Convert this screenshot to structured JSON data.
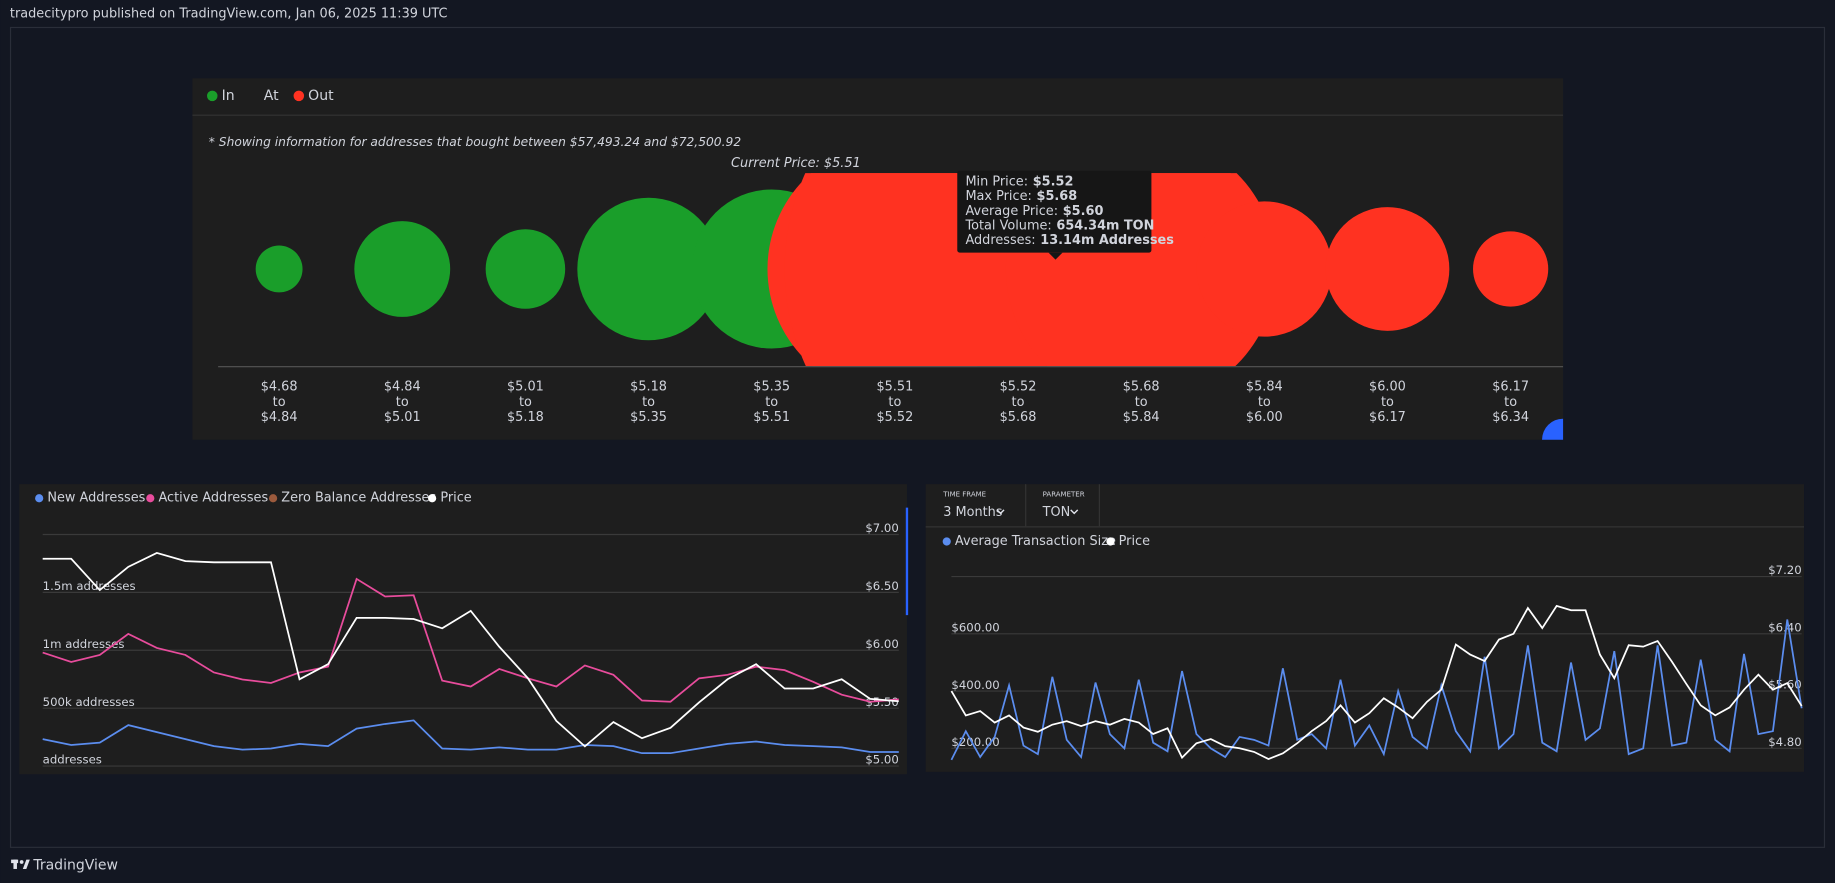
{
  "header": {
    "text": "tradecitypro published on TradingView.com, Jan 06, 2025 11:39 UTC"
  },
  "footer": {
    "brand": "TradingView"
  },
  "chart_data": [
    {
      "type": "bubble",
      "note": "* Showing information for addresses that bought between $57,493.24 and $72,500.92",
      "current_price_label": "Current Price: $5.51",
      "range_word": "to",
      "ranges": [
        [
          "$4.68",
          "$4.84"
        ],
        [
          "$4.84",
          "$5.01"
        ],
        [
          "$5.01",
          "$5.18"
        ],
        [
          "$5.18",
          "$5.35"
        ],
        [
          "$5.35",
          "$5.51"
        ],
        [
          "$5.51",
          "$5.52"
        ],
        [
          "$5.52",
          "$5.68"
        ],
        [
          "$5.68",
          "$5.84"
        ],
        [
          "$5.84",
          "$6.00"
        ],
        [
          "$6.00",
          "$6.17"
        ],
        [
          "$6.17",
          "$6.34"
        ]
      ],
      "series": [
        {
          "name": "In",
          "color": "#1a9e2a",
          "values": [
            6.6,
            27.6,
            19,
            61,
            76,
            null,
            null,
            null,
            null,
            null,
            null
          ]
        },
        {
          "name": "At",
          "values": [
            null,
            null,
            null,
            null,
            null,
            null,
            null,
            null,
            null,
            null,
            null
          ]
        },
        {
          "name": "Out",
          "color": "#ff3221",
          "values": [
            null,
            null,
            null,
            null,
            null,
            195,
            654.34,
            220,
            55,
            46,
            17
          ]
        }
      ],
      "tooltip": {
        "rows": [
          [
            "Min Price:",
            "$5.52"
          ],
          [
            "Max Price:",
            "$5.68"
          ],
          [
            "Average Price:",
            "$5.60"
          ],
          [
            "Total Volume:",
            "654.34m TON"
          ],
          [
            "Addresses:",
            "13.14m Addresses"
          ]
        ]
      }
    },
    {
      "type": "line",
      "categories": [
        null,
        null,
        null,
        null,
        null,
        null,
        null,
        null,
        null,
        null,
        null,
        null,
        null,
        null,
        null,
        null,
        null,
        null,
        null,
        null,
        null,
        null,
        null,
        null,
        null,
        null,
        null,
        null,
        null,
        null,
        null
      ],
      "series": [
        {
          "name": "New Addresses",
          "color": "#5b8def",
          "values": [
            232000,
            182000,
            202000,
            354000,
            293000,
            232000,
            172000,
            141000,
            152000,
            192000,
            172000,
            323000,
            364000,
            394000,
            152000,
            141000,
            162000,
            141000,
            141000,
            182000,
            172000,
            111000,
            111000,
            152000,
            192000,
            212000,
            182000,
            172000,
            162000,
            121000,
            121000
          ]
        },
        {
          "name": "Active Addresses",
          "color": "#e84c9c",
          "values": [
            980000,
            899000,
            960000,
            1141000,
            1020000,
            960000,
            808000,
            747000,
            717000,
            808000,
            859000,
            1616000,
            1465000,
            1475000,
            737000,
            687000,
            838000,
            758000,
            687000,
            869000,
            788000,
            566000,
            556000,
            758000,
            788000,
            859000,
            828000,
            727000,
            616000,
            556000,
            576000
          ]
        },
        {
          "name": "Zero Balance Addresses",
          "color": "#9c5a3c",
          "hidden": true,
          "values": [
            null,
            null,
            null,
            null,
            null,
            null,
            null,
            null,
            null,
            null,
            null,
            null,
            null,
            null,
            null,
            null,
            null,
            null,
            null,
            null,
            null,
            null,
            null,
            null,
            null,
            null,
            null,
            null,
            null,
            null,
            null
          ]
        },
        {
          "name": "Price",
          "color": "#ffffff",
          "axis": "y2",
          "values": [
            6.79,
            6.79,
            6.52,
            6.72,
            6.84,
            6.77,
            6.76,
            6.76,
            6.76,
            5.75,
            5.88,
            6.28,
            6.28,
            6.27,
            6.19,
            6.34,
            6.03,
            5.76,
            5.39,
            5.17,
            5.38,
            5.24,
            5.33,
            5.55,
            5.75,
            5.88,
            5.67,
            5.67,
            5.75,
            5.58,
            5.56
          ]
        }
      ],
      "ylim": [
        0,
        2000000
      ],
      "yticks": [
        {
          "value": 0,
          "label": "addresses"
        },
        {
          "value": 500000,
          "label": "500k addresses"
        },
        {
          "value": 1000000,
          "label": "1m addresses"
        },
        {
          "value": 1500000,
          "label": "1.5m addresses"
        }
      ],
      "y2lim": [
        5,
        7
      ],
      "y2ticks": [
        {
          "value": 5,
          "label": "$5.00"
        },
        {
          "value": 5.5,
          "label": "$5.50"
        },
        {
          "value": 6,
          "label": "$6.00"
        },
        {
          "value": 6.5,
          "label": "$6.50"
        },
        {
          "value": 7,
          "label": "$7.00"
        }
      ],
      "grid": true
    },
    {
      "type": "line",
      "controls": [
        {
          "label": "TIME FRAME",
          "value": "3 Months"
        },
        {
          "label": "PARAMETER",
          "value": "TON"
        }
      ],
      "categories": [
        null,
        null,
        null,
        null,
        null,
        null,
        null,
        null,
        null,
        null,
        null,
        null,
        null,
        null,
        null,
        null,
        null,
        null,
        null,
        null,
        null,
        null,
        null,
        null,
        null,
        null,
        null,
        null,
        null,
        null,
        null,
        null,
        null,
        null,
        null,
        null,
        null,
        null,
        null,
        null,
        null,
        null,
        null,
        null,
        null,
        null,
        null,
        null,
        null,
        null,
        null,
        null,
        null,
        null,
        null,
        null,
        null,
        null,
        null,
        null
      ],
      "series": [
        {
          "name": "Average Transaction Size",
          "color": "#5b8def",
          "values": [
            160,
            260,
            170,
            240,
            420,
            210,
            180,
            450,
            230,
            170,
            430,
            250,
            200,
            440,
            220,
            190,
            470,
            250,
            200,
            170,
            240,
            230,
            210,
            480,
            230,
            250,
            200,
            440,
            210,
            280,
            180,
            400,
            240,
            200,
            420,
            260,
            190,
            520,
            200,
            250,
            560,
            220,
            190,
            500,
            230,
            270,
            540,
            180,
            200,
            560,
            210,
            220,
            510,
            230,
            190,
            530,
            250,
            260,
            650,
            340
          ]
        },
        {
          "name": "Price",
          "color": "#ffffff",
          "axis": "y2",
          "values": [
            5.6,
            5.26,
            5.32,
            5.16,
            5.26,
            5.09,
            5.03,
            5.13,
            5.18,
            5.11,
            5.18,
            5.13,
            5.21,
            5.16,
            5.0,
            5.08,
            4.67,
            4.87,
            4.93,
            4.83,
            4.8,
            4.75,
            4.65,
            4.73,
            4.87,
            5.04,
            5.18,
            5.4,
            5.16,
            5.29,
            5.5,
            5.37,
            5.22,
            5.45,
            5.62,
            6.25,
            6.11,
            6.02,
            6.32,
            6.4,
            6.76,
            6.48,
            6.79,
            6.73,
            6.73,
            6.11,
            5.78,
            6.24,
            6.22,
            6.3,
            6.01,
            5.7,
            5.4,
            5.26,
            5.37,
            5.62,
            5.83,
            5.62,
            5.71,
            5.39
          ]
        }
      ],
      "ylim": [
        118,
        800
      ],
      "yticks": [
        {
          "value": 200,
          "label": "$200.00"
        },
        {
          "value": 400,
          "label": "$400.00"
        },
        {
          "value": 600,
          "label": "$600.00"
        }
      ],
      "y2lim": [
        4.47,
        7.2
      ],
      "y2ticks": [
        {
          "value": 4.8,
          "label": "$4.80"
        },
        {
          "value": 5.6,
          "label": "$5.60"
        },
        {
          "value": 6.4,
          "label": "$6.40"
        },
        {
          "value": 7.2,
          "label": "$7.20"
        }
      ],
      "grid": true
    }
  ]
}
